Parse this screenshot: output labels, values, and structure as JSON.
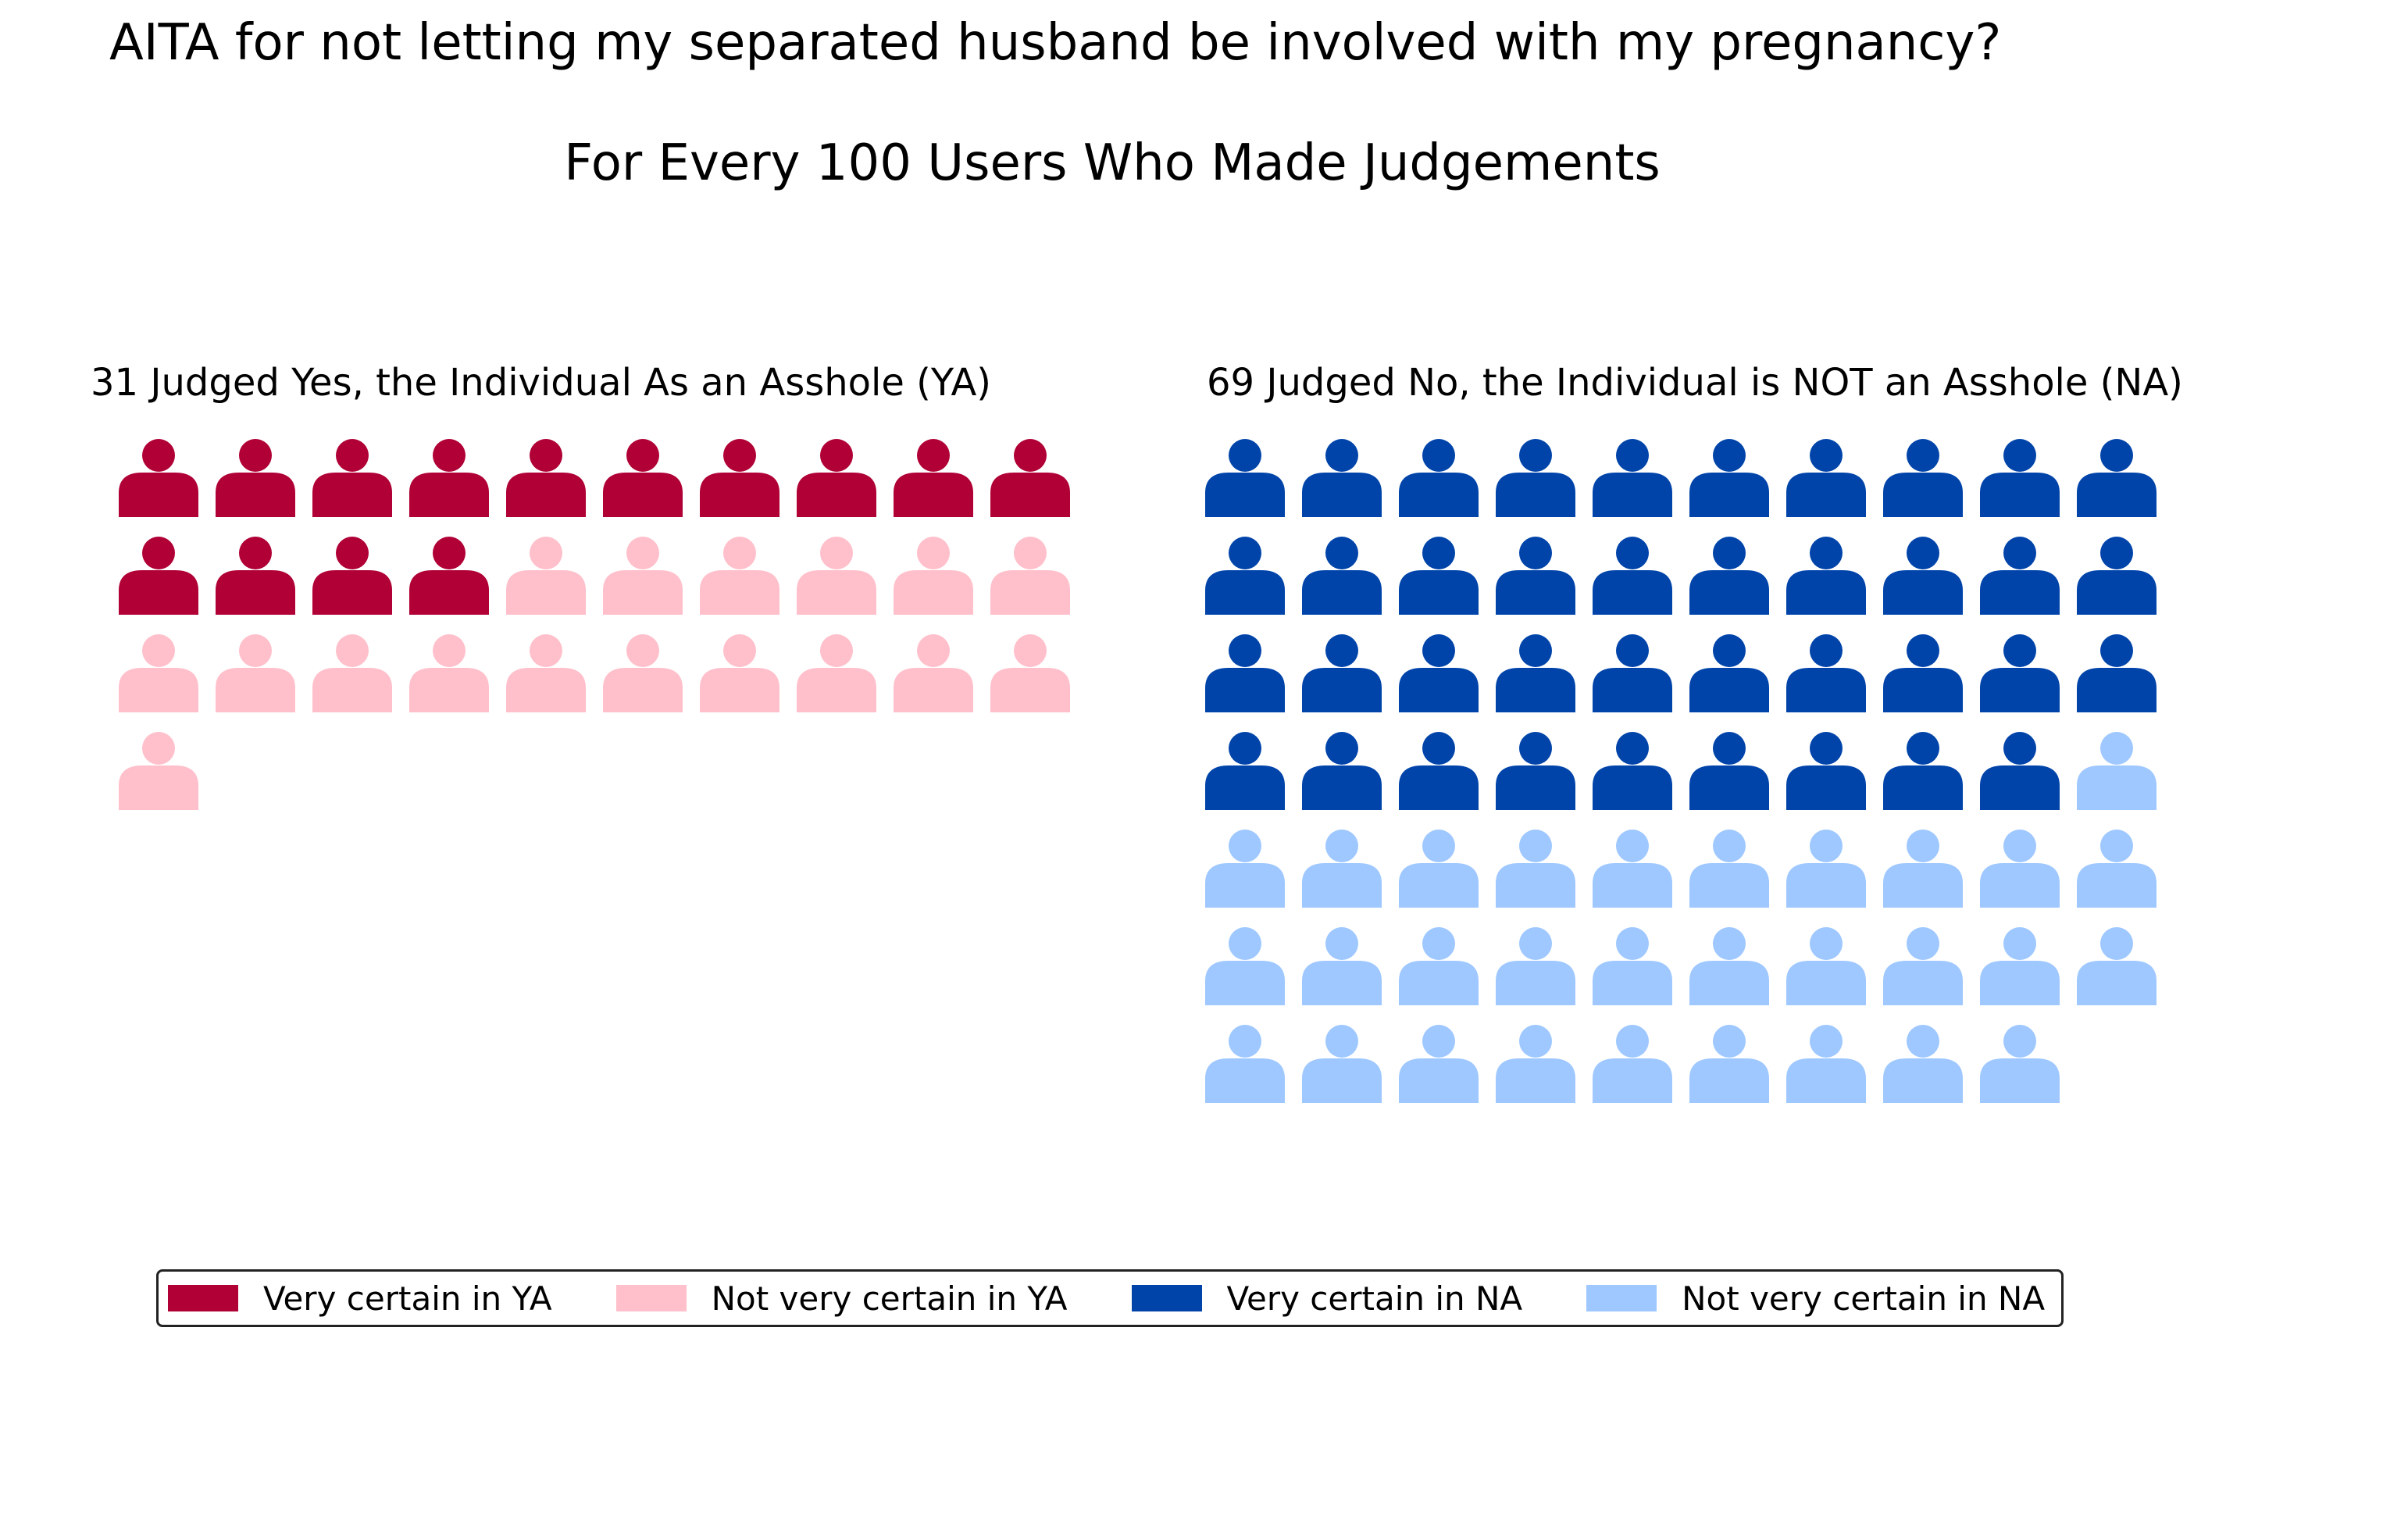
{
  "title": "AITA for not letting my separated husband be involved with my pregnancy?",
  "subtitle": "For Every 100 Users Who Made Judgements",
  "chart_data": {
    "type": "pictogram",
    "title": "AITA for not letting my separated husband be involved with my pregnancy?",
    "subtitle": "For Every 100 Users Who Made Judgements",
    "per": 100,
    "icons_per_row": 10,
    "panels": [
      {
        "title": "31 Judged Yes, the Individual As an Asshole (YA)",
        "total": 31,
        "series": [
          {
            "name": "Very certain in YA",
            "value": 14,
            "color": "#b00035"
          },
          {
            "name": "Not very certain in YA",
            "value": 17,
            "color": "#ffc0cb"
          }
        ]
      },
      {
        "title": "69 Judged No, the Individual is NOT an Asshole (NA)",
        "total": 69,
        "series": [
          {
            "name": "Very certain in NA",
            "value": 39,
            "color": "#0044aa"
          },
          {
            "name": "Not very certain in NA",
            "value": 30,
            "color": "#9ec8ff"
          }
        ]
      }
    ],
    "legend": {
      "position": "bottom",
      "entries": [
        {
          "label": "Very certain in YA",
          "color": "#b00035"
        },
        {
          "label": "Not very certain in YA",
          "color": "#ffc0cb"
        },
        {
          "label": "Very certain in NA",
          "color": "#0044aa"
        },
        {
          "label": "Not very certain in NA",
          "color": "#9ec8ff"
        }
      ]
    }
  }
}
